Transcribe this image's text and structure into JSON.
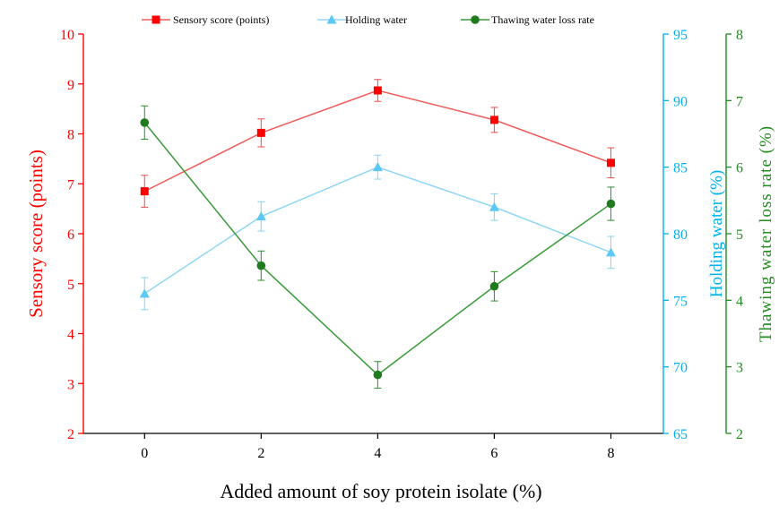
{
  "chart_data": {
    "type": "line",
    "xlabel": "Added amount of soy protein isolate (%)",
    "x": [
      0,
      2,
      4,
      6,
      8
    ],
    "x_ticks": [
      "0",
      "2",
      "4",
      "6",
      "8"
    ],
    "xlim": [
      -1.05,
      8.9
    ],
    "axes": [
      {
        "id": "left",
        "label": "Sensory score (points)",
        "color": "#ff0000",
        "ylim": [
          2,
          10
        ],
        "ticks": [
          "2",
          "3",
          "4",
          "5",
          "6",
          "7",
          "8",
          "9",
          "10"
        ]
      },
      {
        "id": "right1",
        "label": "Holding water (%)",
        "color": "#00b0f0",
        "ylim": [
          65,
          95
        ],
        "ticks": [
          "65",
          "70",
          "75",
          "80",
          "85",
          "90",
          "95"
        ]
      },
      {
        "id": "right2",
        "label": "Thawing water loss rate (%)",
        "color": "#228b22",
        "ylim": [
          2,
          8
        ],
        "ticks": [
          "2",
          "3",
          "4",
          "5",
          "6",
          "7",
          "8"
        ]
      }
    ],
    "series": [
      {
        "name": "Sensory score (points)",
        "axis": "left",
        "color": "#ff0000",
        "line_color": "#f25a5a",
        "marker": "square",
        "values": [
          6.85,
          8.02,
          8.87,
          8.28,
          7.42
        ],
        "errors": [
          0.32,
          0.28,
          0.22,
          0.25,
          0.3
        ]
      },
      {
        "name": "Holding water",
        "axis": "right1",
        "color": "#5bc8f5",
        "line_color": "#8fd6f5",
        "marker": "triangle",
        "values": [
          75.5,
          81.3,
          85.0,
          82.0,
          78.6
        ],
        "errors": [
          1.2,
          1.1,
          0.9,
          1.0,
          1.2
        ]
      },
      {
        "name": "Thawing water loss rate",
        "axis": "right2",
        "color": "#1e7b1e",
        "line_color": "#3a9a3a",
        "marker": "circle",
        "values": [
          6.67,
          4.52,
          2.88,
          4.21,
          5.45
        ],
        "errors": [
          0.25,
          0.22,
          0.2,
          0.22,
          0.25
        ]
      }
    ],
    "legend_position": "top",
    "grid": false
  }
}
